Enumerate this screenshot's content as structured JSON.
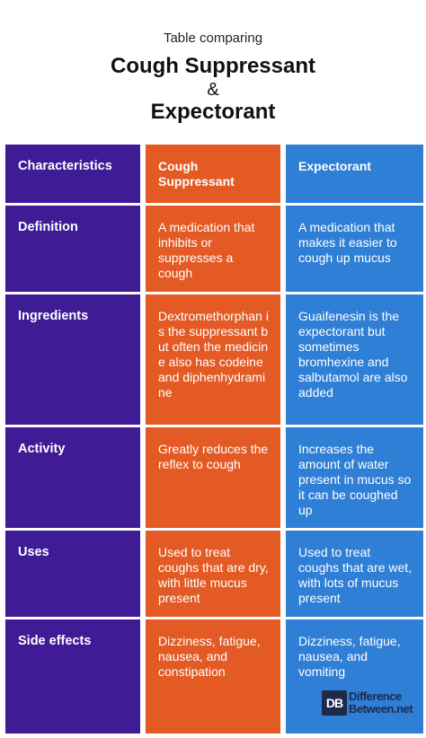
{
  "header": {
    "subtitle": "Table comparing",
    "title_line1": "Cough Suppressant",
    "ampersand": "&",
    "title_line2": "Expectorant"
  },
  "table": {
    "columns": [
      "Characteristics",
      "Cough Suppressant",
      "Expectorant"
    ],
    "rows": [
      {
        "label": "Definition",
        "suppressant": "A medication that inhibits or suppresses a cough",
        "expectorant": "A medication that makes it easier to cough up mucus"
      },
      {
        "label": "Ingredients",
        "suppressant": "Dextromethorphan is the suppressant but often the medicine also has codeine and diphenhydramine",
        "expectorant": "Guaifenesin is the expectorant but sometimes bromhexine and salbutamol are also added"
      },
      {
        "label": "Activity",
        "suppressant": "Greatly reduces the reflex to cough",
        "expectorant": "Increases the amount of water present in mucus so it can be coughed up"
      },
      {
        "label": "Uses",
        "suppressant": "Used to treat coughs that are dry, with little mucus present",
        "expectorant": "Used to treat coughs that are wet, with lots of mucus present"
      },
      {
        "label": "Side effects",
        "suppressant": "Dizziness, fatigue, nausea, and constipation",
        "expectorant": "Dizziness, fatigue, nausea, and vomiting"
      }
    ]
  },
  "logo": {
    "mark": "DB",
    "line1": "Difference",
    "line2": "Between.net"
  },
  "colors": {
    "characteristics": "#3f1b96",
    "suppressant": "#e35a24",
    "expectorant": "#2f7fd6"
  }
}
